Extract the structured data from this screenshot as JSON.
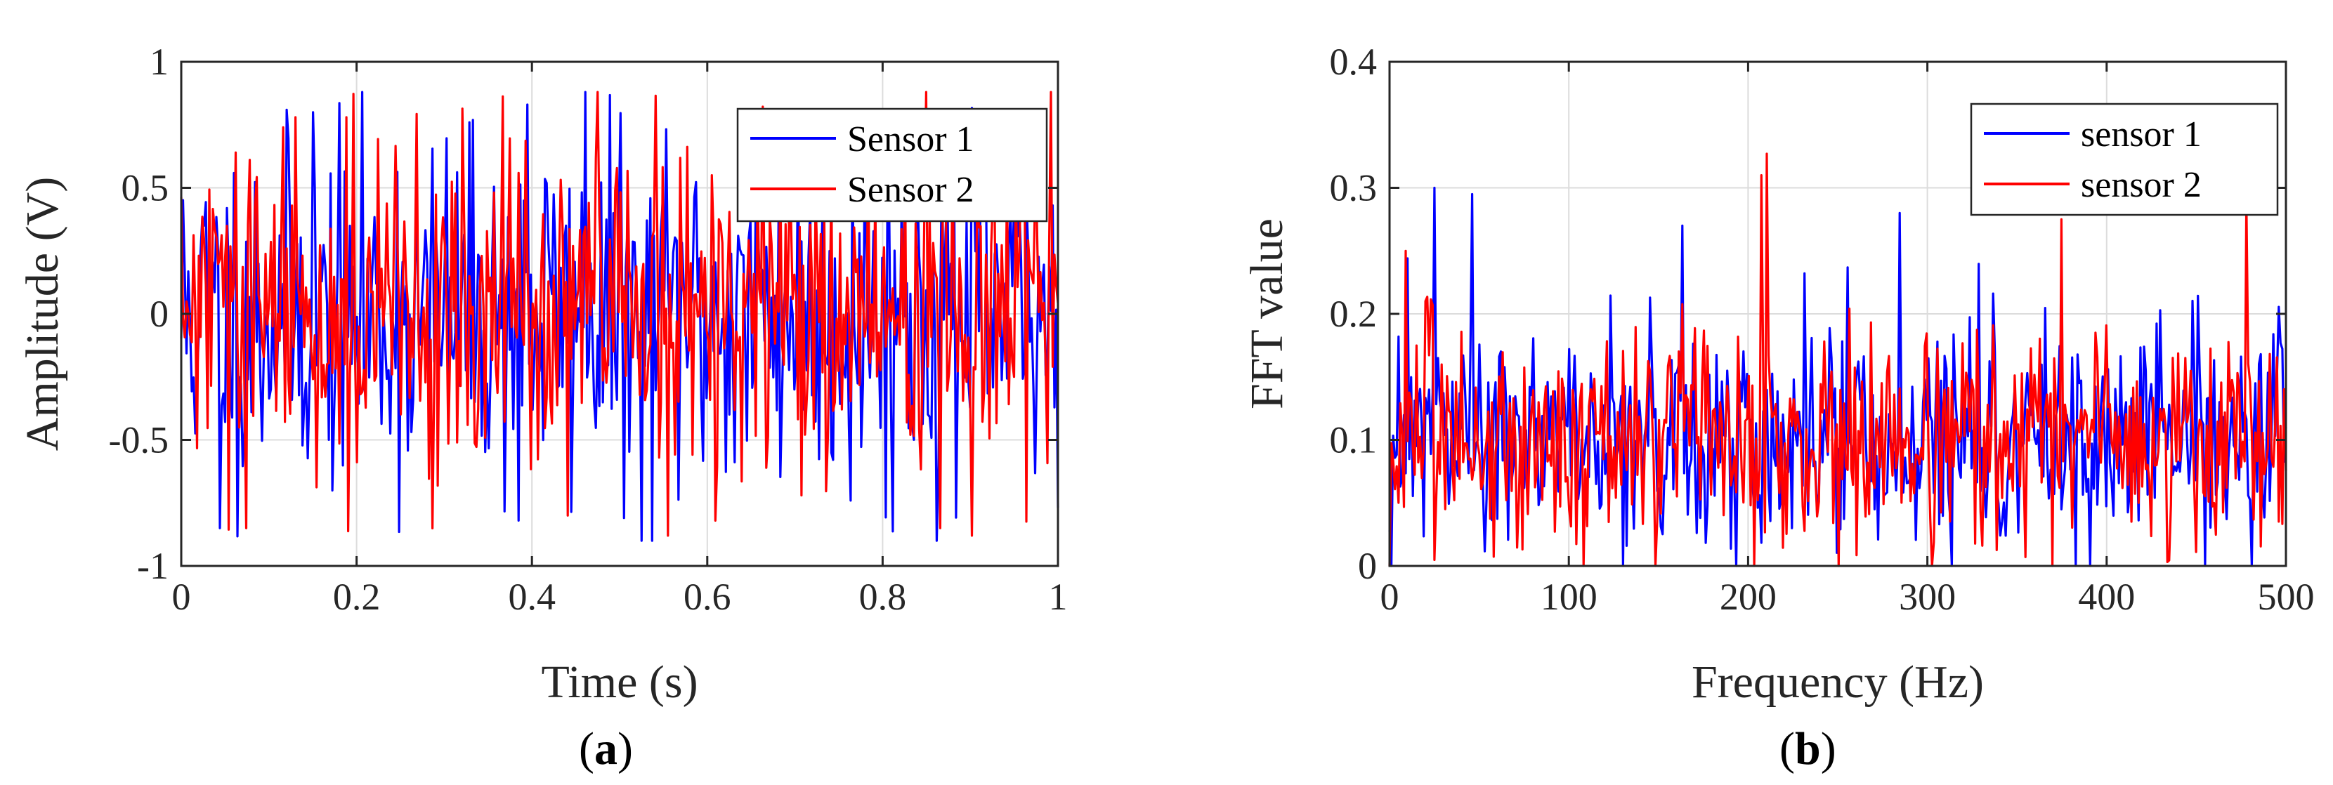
{
  "figure": {
    "panel_a_label": "a",
    "panel_b_label": "b"
  },
  "chart_data": [
    {
      "type": "line",
      "panel": "a",
      "title": "",
      "xlabel": "Time (s)",
      "ylabel": "Amplitude (V)",
      "xlim": [
        0,
        1
      ],
      "ylim": [
        -1,
        1
      ],
      "xticks": [
        0,
        0.2,
        0.4,
        0.6,
        0.8,
        1
      ],
      "xtick_labels": [
        "0",
        "0.2",
        "0.4",
        "0.6",
        "0.8",
        "1"
      ],
      "yticks": [
        -1,
        -0.5,
        0,
        0.5,
        1
      ],
      "ytick_labels": [
        "-1",
        "-0.5",
        "0",
        "0.5",
        "1"
      ],
      "grid": true,
      "legend": "top-right",
      "n_points": 500,
      "series": [
        {
          "name": "Sensor 1",
          "color": "#0000ff",
          "mean": 0,
          "amplitude": 0.35,
          "min": -0.9,
          "max": 0.88,
          "seed": 11
        },
        {
          "name": "Sensor 2",
          "color": "#ff0000",
          "mean": 0,
          "amplitude": 0.33,
          "min": -0.88,
          "max": 0.88,
          "seed": 29
        }
      ],
      "peaks": [
        {
          "series": 0,
          "x": 0.46,
          "y": 0.88
        },
        {
          "series": 1,
          "x": 0.475,
          "y": 0.88
        },
        {
          "series": 0,
          "x": 0.525,
          "y": -0.9
        },
        {
          "series": 1,
          "x": 0.555,
          "y": -0.88
        },
        {
          "series": 0,
          "x": 0.045,
          "y": -0.85
        },
        {
          "series": 1,
          "x": 0.075,
          "y": -0.85
        },
        {
          "series": 0,
          "x": 0.395,
          "y": 0.83
        },
        {
          "series": 0,
          "x": 0.385,
          "y": -0.82
        },
        {
          "series": 1,
          "x": 0.44,
          "y": -0.8
        },
        {
          "series": 1,
          "x": 0.13,
          "y": 0.78
        },
        {
          "series": 0,
          "x": 0.15,
          "y": 0.8
        },
        {
          "series": 1,
          "x": 0.865,
          "y": -0.85
        },
        {
          "series": 1,
          "x": 0.61,
          "y": -0.82
        }
      ]
    },
    {
      "type": "line",
      "panel": "b",
      "title": "",
      "xlabel": "Frequency (Hz)",
      "ylabel": "FFT value",
      "xlim": [
        0,
        500
      ],
      "ylim": [
        0,
        0.4
      ],
      "xticks": [
        0,
        100,
        200,
        300,
        400,
        500
      ],
      "xtick_labels": [
        "0",
        "100",
        "200",
        "300",
        "400",
        "500"
      ],
      "yticks": [
        0,
        0.1,
        0.2,
        0.3,
        0.4
      ],
      "ytick_labels": [
        "0",
        "0.1",
        "0.2",
        "0.3",
        "0.4"
      ],
      "grid": true,
      "legend": "top-right",
      "n_points": 500,
      "series": [
        {
          "name": "sensor 1",
          "color": "#0000ff",
          "mean": 0.1,
          "amplitude": 0.045,
          "min": 0,
          "max": 0.3,
          "seed": 47
        },
        {
          "name": "sensor 2",
          "color": "#ff0000",
          "mean": 0.1,
          "amplitude": 0.045,
          "min": 0,
          "max": 0.33,
          "seed": 83
        }
      ],
      "peaks": [
        {
          "series": 1,
          "x": 210,
          "y": 0.327
        },
        {
          "series": 1,
          "x": 207,
          "y": 0.31
        },
        {
          "series": 0,
          "x": 25,
          "y": 0.3
        },
        {
          "series": 0,
          "x": 46,
          "y": 0.295
        },
        {
          "series": 1,
          "x": 9,
          "y": 0.25
        },
        {
          "series": 0,
          "x": 285,
          "y": 0.28
        },
        {
          "series": 1,
          "x": 478,
          "y": 0.29
        },
        {
          "series": 1,
          "x": 375,
          "y": 0.275
        },
        {
          "series": 0,
          "x": 163,
          "y": 0.27
        },
        {
          "series": 0,
          "x": 130,
          "y": 0
        },
        {
          "series": 1,
          "x": 0,
          "y": 0
        },
        {
          "series": 0,
          "x": 455,
          "y": 0
        }
      ]
    }
  ]
}
